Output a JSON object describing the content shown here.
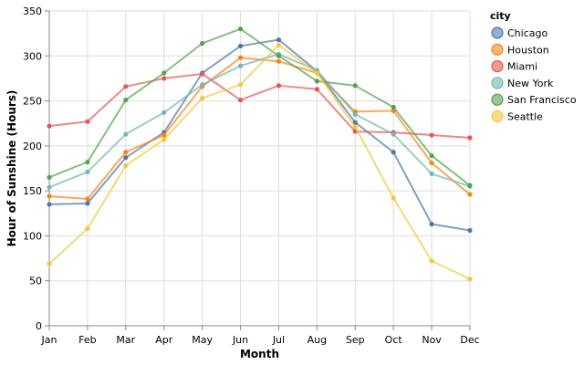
{
  "chart_data": {
    "type": "line",
    "xlabel": "Month",
    "ylabel": "Hour of Sunshine (Hours)",
    "categories": [
      "Jan",
      "Feb",
      "Mar",
      "Apr",
      "May",
      "Jun",
      "Jul",
      "Aug",
      "Sep",
      "Oct",
      "Nov",
      "Dec"
    ],
    "ylim": [
      0,
      350
    ],
    "yticks": [
      0,
      50,
      100,
      150,
      200,
      250,
      300,
      350
    ],
    "grid": true,
    "legend": {
      "title": "city",
      "placement": "right"
    },
    "series": [
      {
        "name": "Chicago",
        "color": "#4c78a8",
        "values": [
          135,
          136,
          187,
          215,
          281,
          311,
          318,
          283,
          226,
          193,
          113,
          106
        ]
      },
      {
        "name": "Houston",
        "color": "#f58518",
        "values": [
          144,
          141,
          193,
          212,
          266,
          298,
          294,
          281,
          238,
          239,
          181,
          146
        ]
      },
      {
        "name": "Miami",
        "color": "#e45756",
        "values": [
          222,
          227,
          266,
          275,
          280,
          251,
          267,
          263,
          216,
          215,
          212,
          209
        ]
      },
      {
        "name": "New York",
        "color": "#72b7b2",
        "values": [
          154,
          171,
          213,
          237,
          268,
          289,
          302,
          284,
          235,
          213,
          169,
          155
        ]
      },
      {
        "name": "San Francisco",
        "color": "#54a24b",
        "values": [
          165,
          182,
          251,
          281,
          314,
          330,
          300,
          272,
          267,
          243,
          189,
          156
        ]
      },
      {
        "name": "Seattle",
        "color": "#eeca3b",
        "values": [
          69,
          108,
          178,
          207,
          253,
          268,
          312,
          281,
          221,
          142,
          72,
          52
        ]
      }
    ]
  }
}
